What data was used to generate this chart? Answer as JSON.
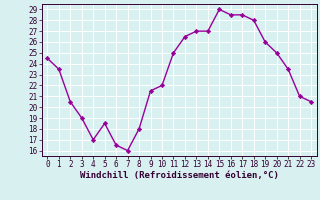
{
  "x": [
    0,
    1,
    2,
    3,
    4,
    5,
    6,
    7,
    8,
    9,
    10,
    11,
    12,
    13,
    14,
    15,
    16,
    17,
    18,
    19,
    20,
    21,
    22,
    23
  ],
  "y": [
    24.5,
    23.5,
    20.5,
    19.0,
    17.0,
    18.5,
    16.5,
    16.0,
    18.0,
    21.5,
    22.0,
    25.0,
    26.5,
    27.0,
    27.0,
    29.0,
    28.5,
    28.5,
    28.0,
    26.0,
    25.0,
    23.5,
    21.0,
    20.5
  ],
  "line_color": "#990099",
  "marker": "D",
  "marker_size": 2.2,
  "bg_color": "#d8f0f0",
  "grid_color": "#b8d8d8",
  "xlim": [
    -0.5,
    23.5
  ],
  "ylim": [
    15.5,
    29.5
  ],
  "yticks": [
    16,
    17,
    18,
    19,
    20,
    21,
    22,
    23,
    24,
    25,
    26,
    27,
    28,
    29
  ],
  "xlabel": "Windchill (Refroidissement éolien,°C)",
  "xlabel_fontsize": 6.5,
  "tick_fontsize": 5.5,
  "line_width": 1.0,
  "spine_color": "#330033",
  "tick_color": "#330033"
}
